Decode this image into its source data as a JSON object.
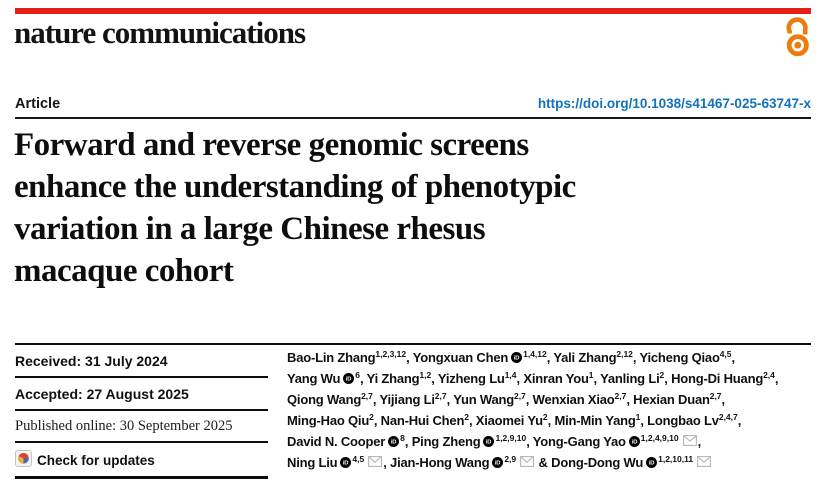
{
  "journal": {
    "name": "nature communications"
  },
  "colors": {
    "brand_red": "#e22016",
    "link_blue": "#1373ba",
    "open_access_orange": "#ed7c0e"
  },
  "icons": {
    "open_access": "open-padlock",
    "orcid": "orcid-id-circle",
    "email": "envelope",
    "check_updates": "crossmark-circle"
  },
  "header": {
    "article_label": "Article",
    "doi": "https://doi.org/10.1038/s41467-025-63747-x"
  },
  "title_lines": [
    "Forward and reverse genomic screens",
    "enhance the understanding of phenotypic",
    "variation in a large Chinese rhesus",
    "macaque cohort"
  ],
  "dates": {
    "received": "Received: 31 July 2024",
    "accepted": "Accepted: 27 August 2025",
    "published": "Published online: 30 September 2025"
  },
  "check_updates_label": "Check for updates",
  "authors": {
    "lines": [
      [
        {
          "name": "Bao-Lin Zhang",
          "sup": "1,2,3,12",
          "sep": ", "
        },
        {
          "name": "Yongxuan Chen",
          "orcid": true,
          "sup": "1,4,12",
          "sep": ", "
        },
        {
          "name": "Yali Zhang",
          "sup": "2,12",
          "sep": ", "
        },
        {
          "name": "Yicheng Qiao",
          "sup": "4,5",
          "sep": ","
        }
      ],
      [
        {
          "name": "Yang Wu",
          "orcid": true,
          "sup": "6",
          "sep": ", "
        },
        {
          "name": "Yi Zhang",
          "sup": "1,2",
          "sep": ", "
        },
        {
          "name": "Yizheng Lu",
          "sup": "1,4",
          "sep": ", "
        },
        {
          "name": "Xinran You",
          "sup": "1",
          "sep": ", "
        },
        {
          "name": "Yanling Li",
          "sup": "2",
          "sep": ", "
        },
        {
          "name": "Hong-Di Huang",
          "sup": "2,4",
          "sep": ","
        }
      ],
      [
        {
          "name": "Qiong Wang",
          "sup": "2,7",
          "sep": ", "
        },
        {
          "name": "Yijiang Li",
          "sup": "2,7",
          "sep": ", "
        },
        {
          "name": "Yun Wang",
          "sup": "2,7",
          "sep": ", "
        },
        {
          "name": "Wenxian Xiao",
          "sup": "2,7",
          "sep": ", "
        },
        {
          "name": "Hexian Duan",
          "sup": "2,7",
          "sep": ","
        }
      ],
      [
        {
          "name": "Ming-Hao Qiu",
          "sup": "2",
          "sep": ", "
        },
        {
          "name": "Nan-Hui Chen",
          "sup": "2",
          "sep": ", "
        },
        {
          "name": "Xiaomei Yu",
          "sup": "2",
          "sep": ", "
        },
        {
          "name": "Min-Min Yang",
          "sup": "1",
          "sep": ", "
        },
        {
          "name": "Longbao Lv",
          "sup": "2,4,7",
          "sep": ","
        }
      ],
      [
        {
          "name": "David N. Cooper",
          "orcid": true,
          "sup": "8",
          "sep": ", "
        },
        {
          "name": "Ping Zheng",
          "orcid": true,
          "sup": "1,2,9,10",
          "sep": ", "
        },
        {
          "name": "Yong-Gang Yao",
          "orcid": true,
          "sup": "1,2,4,9,10",
          "mail": true,
          "sep": ","
        }
      ],
      [
        {
          "name": "Ning Liu",
          "orcid": true,
          "sup": "4,5",
          "mail": true,
          "sep": ", "
        },
        {
          "name": "Jian-Hong Wang",
          "orcid": true,
          "sup": "2,9",
          "mail": true,
          "sep": " & "
        },
        {
          "name": "Dong-Dong Wu",
          "orcid": true,
          "sup": "1,2,10,11",
          "mail": true,
          "sep": ""
        }
      ]
    ]
  }
}
